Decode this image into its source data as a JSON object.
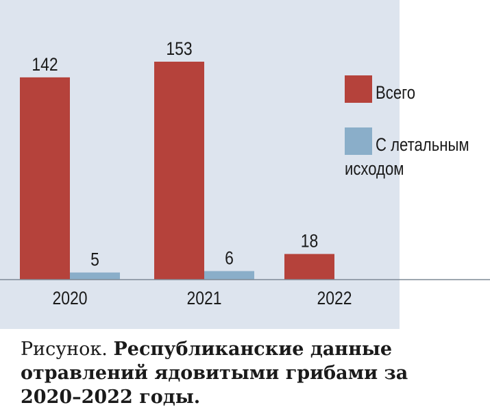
{
  "chart_data": {
    "type": "bar",
    "categories": [
      "2020",
      "2021",
      "2022"
    ],
    "series": [
      {
        "name": "Всего",
        "values": [
          142,
          153,
          18
        ],
        "color": "#b5423b"
      },
      {
        "name": "С летальным исходом",
        "values": [
          5,
          6,
          null
        ],
        "color": "#8aaec9"
      }
    ],
    "ylim": [
      0,
      200
    ],
    "grid": false,
    "legend_placement": "right",
    "data_labels": true,
    "legend": {
      "items": [
        {
          "lines": [
            "Всего"
          ]
        },
        {
          "lines": [
            "С летальным",
            "исходом"
          ]
        }
      ]
    }
  },
  "caption": {
    "label": "Рисунок.",
    "title": "Республиканские данные отравлений ядовитыми грибами за 2020–2022 годы."
  },
  "colors": {
    "plot_background": "#dde4ee",
    "axis": "#7f8a96",
    "text": "#1a1a1a"
  }
}
